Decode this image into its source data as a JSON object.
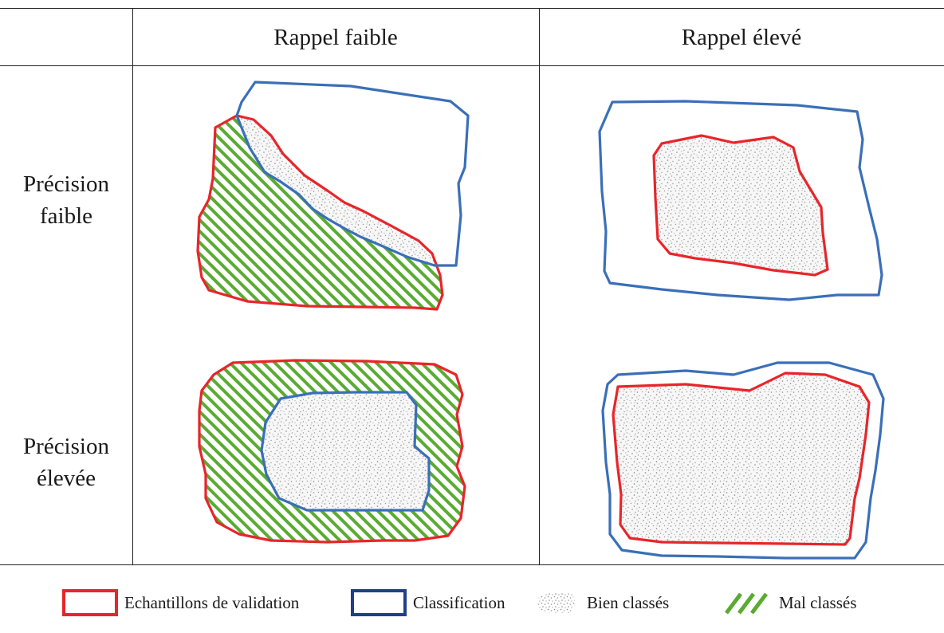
{
  "table": {
    "columns": [
      "Rappel faible",
      "Rappel élevé"
    ],
    "rows": [
      {
        "label_line1": "Précision",
        "label_line2": "faible"
      },
      {
        "label_line1": "Précision",
        "label_line2": "élevée"
      }
    ]
  },
  "legend": {
    "items": [
      {
        "label": "Echantillons de validation",
        "icon": "red-outline-square-icon"
      },
      {
        "label": "Classification",
        "icon": "blue-outline-square-icon"
      },
      {
        "label": "Bien classés",
        "icon": "stipple-pattern-icon"
      },
      {
        "label": "Mal classés",
        "icon": "green-hatch-icon"
      }
    ]
  },
  "colors": {
    "validation": "#e8252a",
    "classification": "#3a6fb8",
    "misclassified": "#5aab32",
    "correctly_classified": "#9a9a9a"
  }
}
